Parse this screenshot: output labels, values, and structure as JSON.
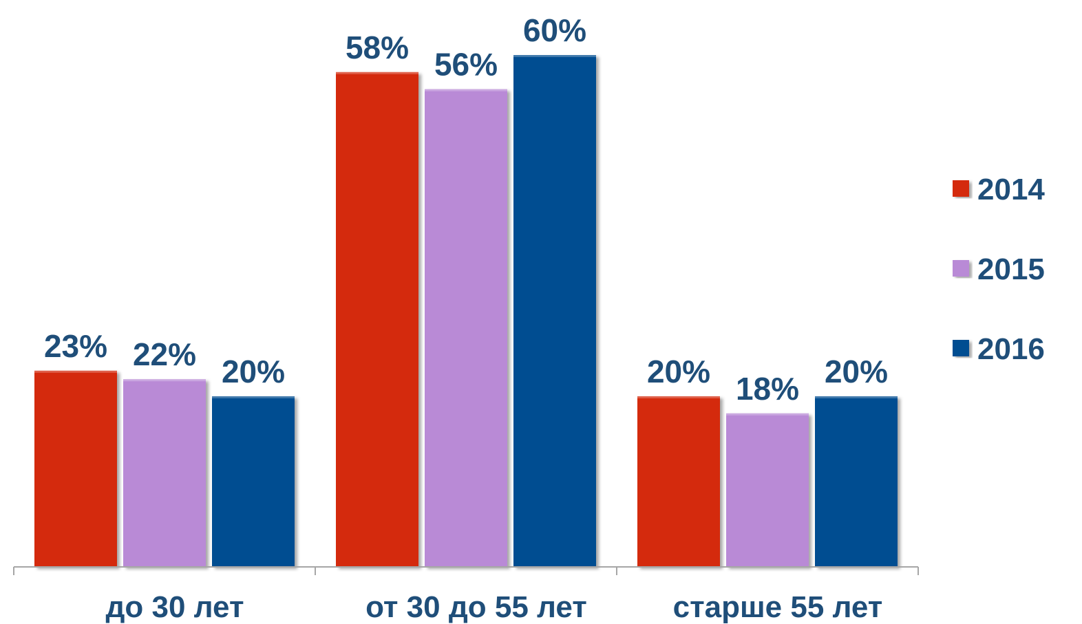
{
  "chart_data": {
    "type": "bar",
    "categories": [
      "до 30 лет",
      "от 30 до 55 лет",
      "старше 55 лет"
    ],
    "series": [
      {
        "name": "2014",
        "values": [
          23,
          58,
          20
        ],
        "color": "#d42a10"
      },
      {
        "name": "2015",
        "values": [
          22,
          56,
          18
        ],
        "color": "#b98ad6"
      },
      {
        "name": "2016",
        "values": [
          20,
          60,
          20
        ],
        "color": "#044e91"
      }
    ],
    "value_labels": [
      [
        "23%",
        "58%",
        "20%"
      ],
      [
        "22%",
        "56%",
        "18%"
      ],
      [
        "20%",
        "60%",
        "20%"
      ]
    ],
    "value_suffix": "%",
    "ylim": [
      0,
      60
    ],
    "grid": false,
    "legend_position": "right",
    "title": "",
    "xlabel": "",
    "ylabel": ""
  }
}
